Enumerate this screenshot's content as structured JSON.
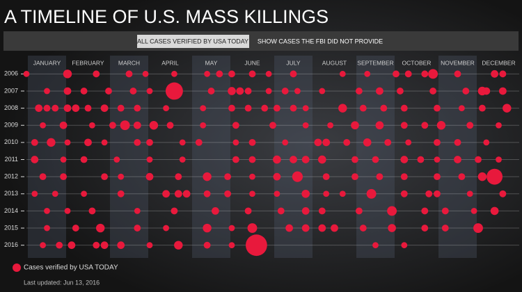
{
  "chart_data": {
    "type": "scatter",
    "title": "A TIMELINE OF U.S. MASS KILLINGS",
    "buttons": [
      "ALL CASES VERIFIED BY USA TODAY",
      "SHOW CASES THE FBI DID NOT PROVIDE"
    ],
    "categories": [
      "JANUARY",
      "FEBRUARY",
      "MARCH",
      "APRIL",
      "MAY",
      "JUNE",
      "JULY",
      "AUGUST",
      "SEPTEMBER",
      "OCTOBER",
      "NOVEMBER",
      "DECEMBER"
    ],
    "xlim": [
      0,
      12
    ],
    "ylim": [
      2016.5,
      2005.5
    ],
    "yticks": [
      2006,
      2007,
      2008,
      2009,
      2010,
      2011,
      2012,
      2013,
      2014,
      2015,
      2016
    ],
    "grid": true,
    "series": [
      {
        "name": "Cases verified by USA TODAY",
        "color": "#e8193c",
        "x": [
          0.0,
          1.0,
          1.7,
          2.5,
          2.9,
          3.6,
          4.4,
          4.7,
          5.0,
          5.5,
          5.9,
          6.5,
          7.7,
          8.3,
          9.0,
          9.3,
          9.7,
          9.9,
          10.5,
          11.4,
          11.6,
          0.5,
          1.0,
          1.4,
          2.0,
          2.6,
          3.0,
          3.6,
          4.5,
          5.0,
          5.2,
          5.4,
          5.9,
          6.3,
          6.6,
          7.2,
          8.1,
          8.6,
          9.1,
          9.9,
          10.7,
          11.1,
          11.2,
          11.6,
          0.3,
          0.5,
          0.7,
          1.0,
          1.2,
          1.5,
          1.9,
          2.3,
          2.7,
          3.4,
          4.3,
          5.0,
          5.4,
          5.8,
          6.1,
          6.5,
          6.8,
          7.7,
          8.2,
          8.7,
          9.2,
          10.0,
          10.6,
          11.1,
          11.7,
          0.4,
          0.9,
          1.6,
          2.1,
          2.4,
          2.7,
          3.1,
          3.5,
          4.3,
          5.1,
          6.0,
          6.8,
          7.4,
          8.0,
          8.6,
          9.2,
          9.7,
          10.1,
          10.8,
          11.5,
          0.2,
          0.6,
          1.0,
          1.5,
          1.9,
          2.7,
          3.0,
          3.8,
          4.2,
          5.1,
          5.5,
          6.3,
          7.1,
          7.3,
          7.8,
          8.3,
          8.8,
          9.3,
          10.0,
          10.5,
          11.2,
          0.2,
          0.9,
          1.4,
          2.2,
          3.0,
          3.8,
          5.1,
          5.5,
          6.1,
          6.5,
          6.8,
          7.2,
          8.0,
          8.5,
          9.2,
          9.6,
          10.0,
          10.5,
          11.0,
          11.5,
          0.4,
          0.9,
          1.9,
          2.3,
          3.0,
          3.7,
          4.4,
          4.9,
          5.5,
          6.1,
          6.6,
          7.3,
          8.0,
          8.6,
          9.2,
          10.0,
          10.6,
          11.1,
          11.4,
          0.2,
          0.7,
          1.4,
          2.3,
          3.4,
          3.7,
          3.9,
          4.4,
          4.9,
          5.5,
          6.1,
          6.8,
          7.3,
          7.7,
          8.4,
          9.2,
          9.8,
          10.0,
          10.8,
          11.6,
          0.5,
          1.0,
          1.6,
          2.7,
          3.6,
          4.6,
          5.4,
          6.2,
          6.8,
          7.2,
          8.1,
          8.9,
          9.7,
          10.2,
          10.9,
          11.4,
          0.5,
          1.2,
          1.8,
          2.7,
          3.4,
          4.4,
          5.0,
          5.5,
          6.4,
          6.8,
          7.2,
          7.5,
          8.2,
          8.9,
          9.7,
          10.2,
          11.0,
          0.4,
          0.8,
          1.1,
          1.7,
          1.9,
          2.3,
          3.0,
          3.7,
          4.4,
          5.0,
          5.6,
          8.5,
          9.2
        ],
        "y": [
          2006,
          2006,
          2006,
          2006,
          2006,
          2006,
          2006,
          2006,
          2006,
          2006,
          2006,
          2006,
          2006,
          2006,
          2006,
          2006,
          2006,
          2006,
          2006,
          2006,
          2006,
          2007,
          2007,
          2007,
          2007,
          2007,
          2007,
          2007,
          2007,
          2007,
          2007,
          2007,
          2007,
          2007,
          2007,
          2007,
          2007,
          2007,
          2007,
          2007,
          2007,
          2007,
          2007,
          2007,
          2008,
          2008,
          2008,
          2008,
          2008,
          2008,
          2008,
          2008,
          2008,
          2008,
          2008,
          2008,
          2008,
          2008,
          2008,
          2008,
          2008,
          2008,
          2008,
          2008,
          2008,
          2008,
          2008,
          2008,
          2008,
          2009,
          2009,
          2009,
          2009,
          2009,
          2009,
          2009,
          2009,
          2009,
          2009,
          2009,
          2009,
          2009,
          2009,
          2009,
          2009,
          2009,
          2009,
          2009,
          2009,
          2010,
          2010,
          2010,
          2010,
          2010,
          2010,
          2010,
          2010,
          2010,
          2010,
          2010,
          2010,
          2010,
          2010,
          2010,
          2010,
          2010,
          2010,
          2010,
          2010,
          2010,
          2011,
          2011,
          2011,
          2011,
          2011,
          2011,
          2011,
          2011,
          2011,
          2011,
          2011,
          2011,
          2011,
          2011,
          2011,
          2011,
          2011,
          2011,
          2011,
          2011,
          2012,
          2012,
          2012,
          2012,
          2012,
          2012,
          2012,
          2012,
          2012,
          2012,
          2012,
          2012,
          2012,
          2012,
          2012,
          2012,
          2012,
          2012,
          2012,
          2013,
          2013,
          2013,
          2013,
          2013,
          2013,
          2013,
          2013,
          2013,
          2013,
          2013,
          2013,
          2013,
          2013,
          2013,
          2013,
          2013,
          2013,
          2013,
          2013,
          2014,
          2014,
          2014,
          2014,
          2014,
          2014,
          2014,
          2014,
          2014,
          2014,
          2014,
          2014,
          2014,
          2014,
          2014,
          2014,
          2015,
          2015,
          2015,
          2015,
          2015,
          2015,
          2015,
          2015,
          2015,
          2015,
          2015,
          2015,
          2015,
          2015,
          2015,
          2015,
          2015,
          2016,
          2016,
          2016,
          2016,
          2016,
          2016,
          2016,
          2016,
          2016,
          2016,
          2016,
          2016,
          2016
        ],
        "size": [
          4,
          8,
          5,
          5,
          4,
          4,
          4,
          5,
          5,
          5,
          4,
          5,
          4,
          4,
          5,
          5,
          5,
          10,
          5,
          6,
          5,
          4,
          6,
          5,
          5,
          5,
          4,
          32,
          5,
          7,
          6,
          5,
          4,
          5,
          4,
          4,
          5,
          6,
          5,
          5,
          5,
          8,
          6,
          6,
          6,
          5,
          5,
          6,
          6,
          5,
          6,
          5,
          5,
          4,
          4,
          5,
          5,
          5,
          5,
          5,
          4,
          8,
          5,
          5,
          5,
          5,
          4,
          5,
          8,
          4,
          6,
          4,
          5,
          10,
          6,
          8,
          5,
          4,
          5,
          5,
          4,
          4,
          7,
          7,
          5,
          5,
          8,
          5,
          4,
          5,
          8,
          4,
          6,
          4,
          5,
          5,
          4,
          5,
          4,
          5,
          4,
          6,
          6,
          5,
          7,
          5,
          4,
          5,
          5,
          4,
          6,
          4,
          5,
          4,
          4,
          4,
          5,
          5,
          7,
          6,
          6,
          7,
          5,
          5,
          6,
          5,
          4,
          6,
          5,
          4,
          5,
          5,
          5,
          4,
          6,
          5,
          8,
          5,
          4,
          6,
          12,
          5,
          5,
          5,
          5,
          5,
          5,
          8,
          27,
          4,
          4,
          4,
          5,
          6,
          6,
          6,
          5,
          5,
          4,
          4,
          7,
          4,
          4,
          10,
          5,
          5,
          5,
          4,
          5,
          4,
          4,
          5,
          4,
          5,
          6,
          5,
          5,
          6,
          5,
          5,
          10,
          5,
          5,
          4,
          7,
          4,
          5,
          8,
          5,
          4,
          8,
          4,
          10,
          6,
          6,
          6,
          6,
          5,
          7,
          5,
          5,
          10,
          4,
          5,
          6,
          5,
          6,
          6,
          4,
          8,
          5,
          4,
          49,
          4,
          4
        ]
      }
    ],
    "note": "Last updated: Jun 13, 2016"
  }
}
